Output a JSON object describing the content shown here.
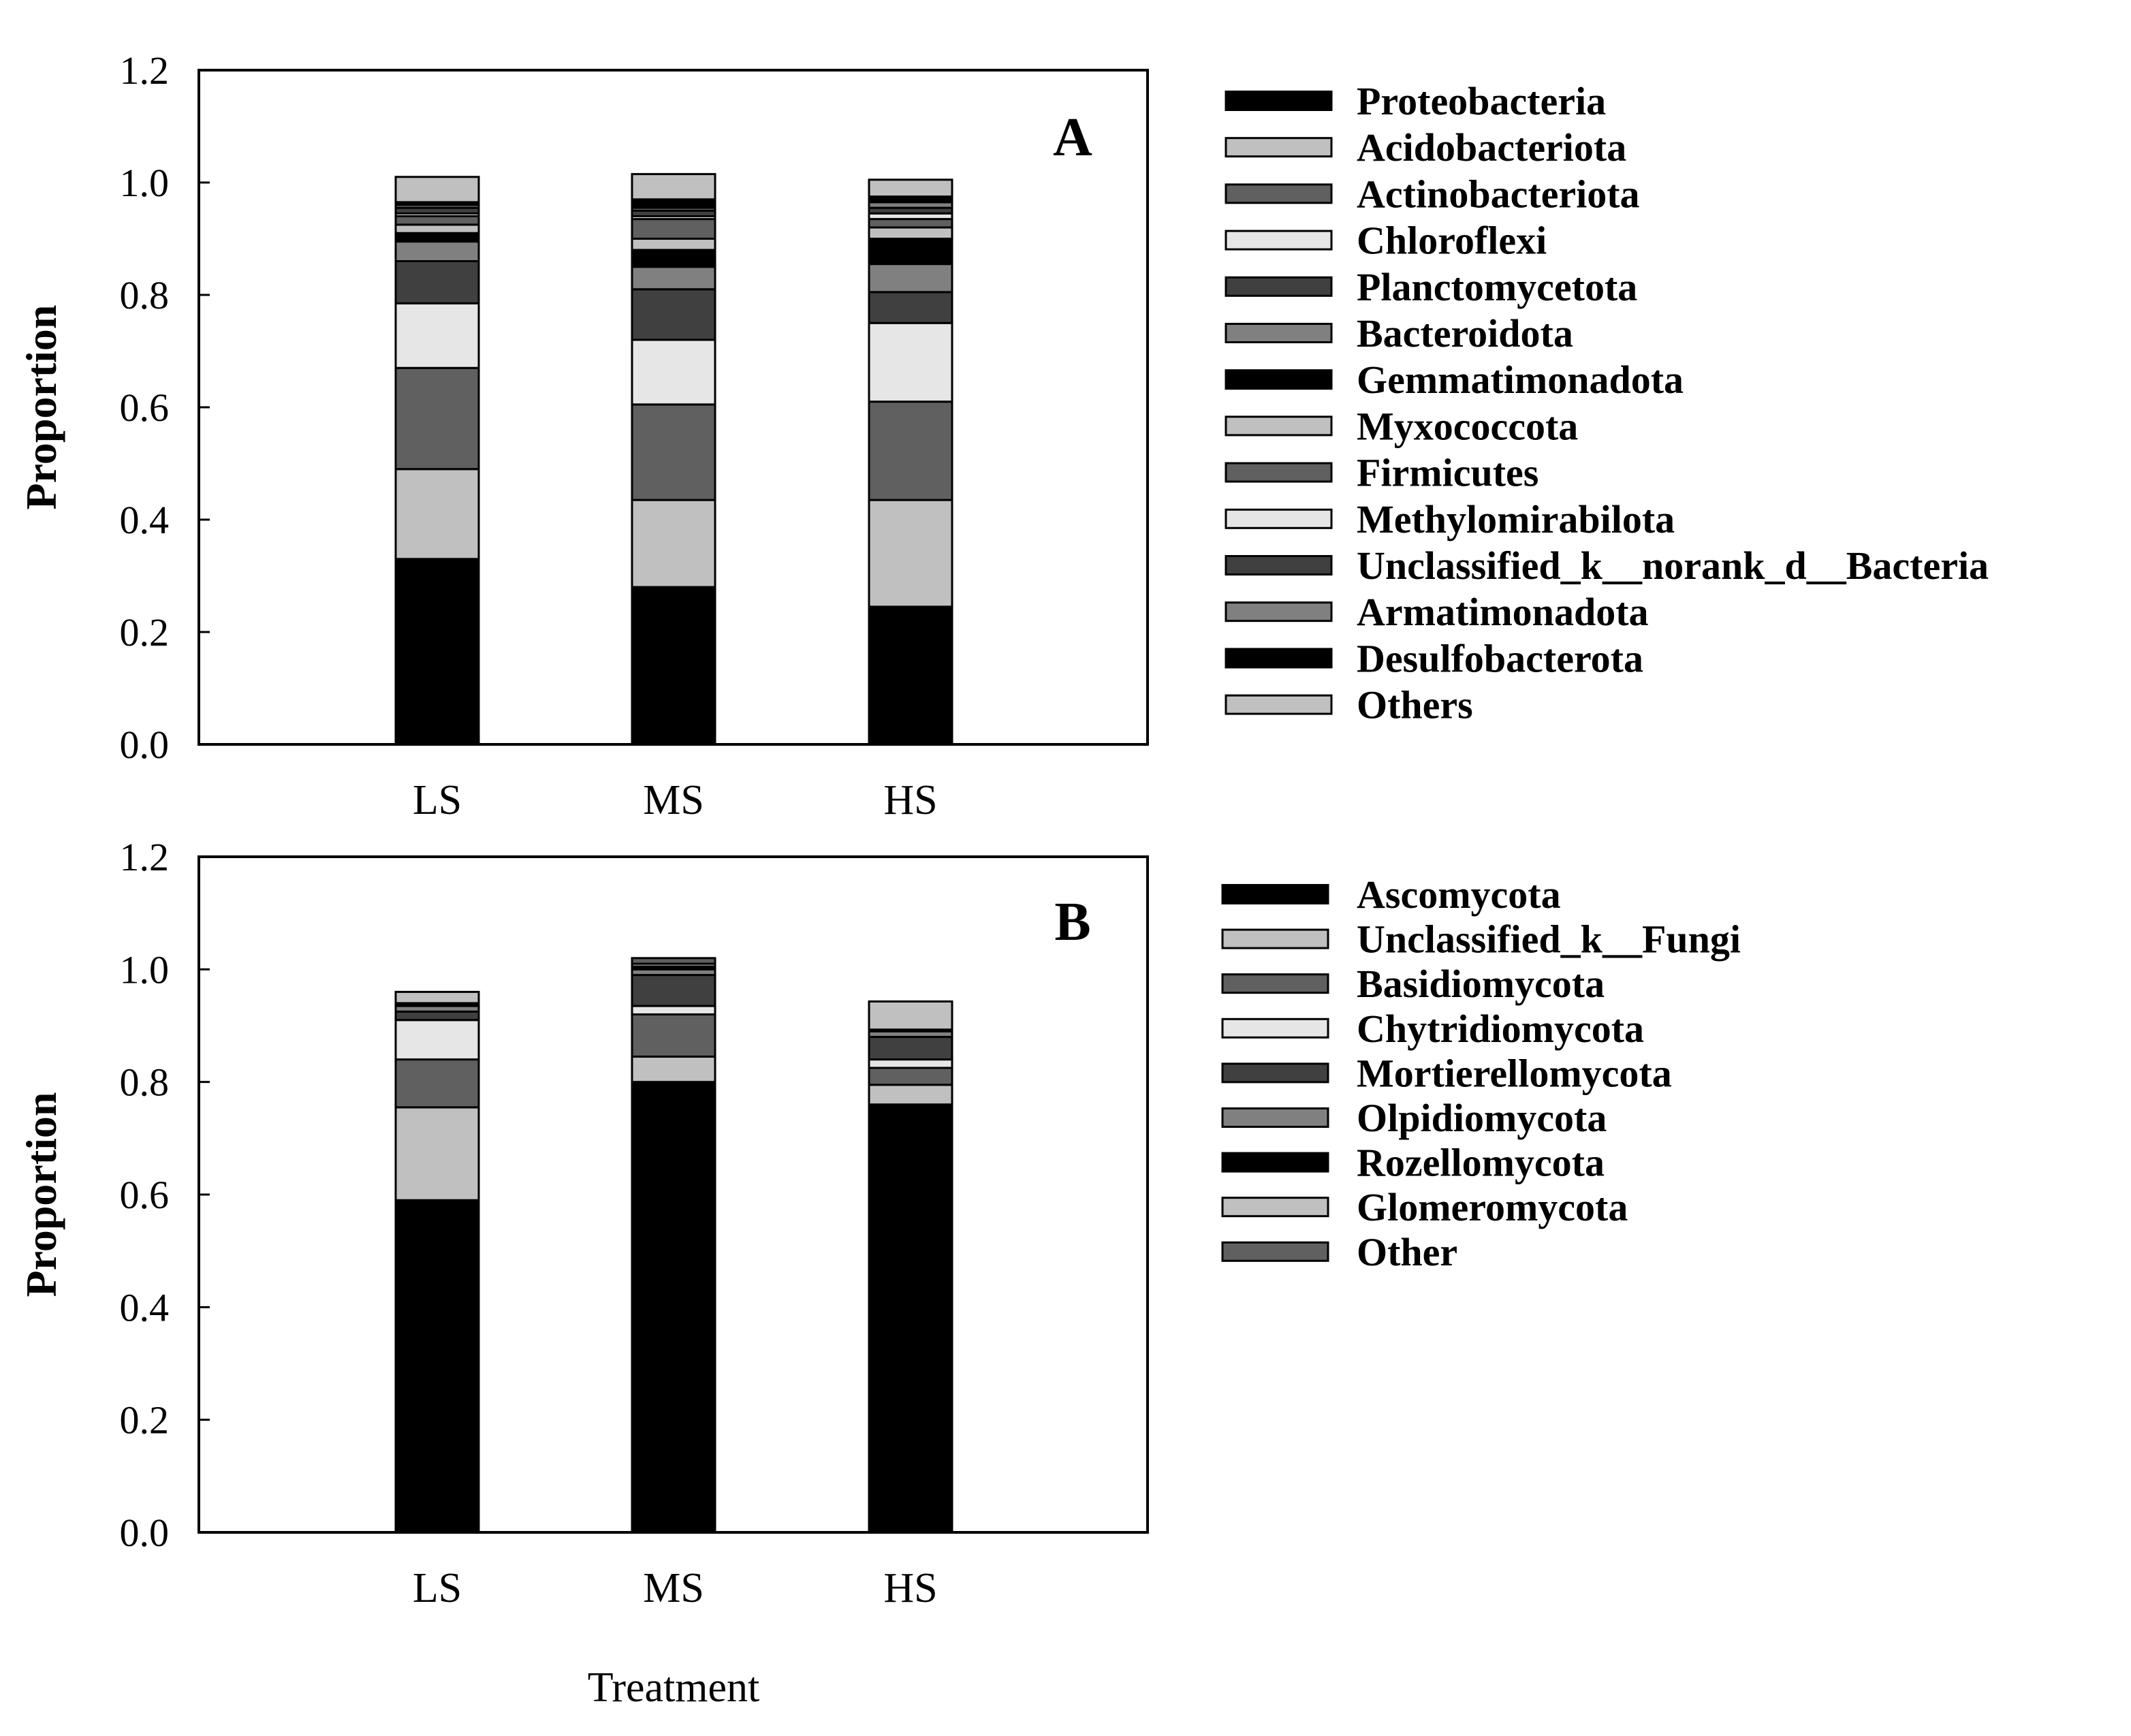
{
  "chart_data": [
    {
      "type": "bar",
      "stacked": true,
      "panel_label": "A",
      "categories": [
        "LS",
        "MS",
        "HS"
      ],
      "ylabel": "Proportion",
      "xlabel": "",
      "ylim": [
        0,
        1.2
      ],
      "yticks": [
        "0.0",
        "0.2",
        "0.4",
        "0.6",
        "0.8",
        "1.0",
        "1.2"
      ],
      "legend_position": "right",
      "series": [
        {
          "name": "Proteobacteria",
          "color": "#000000",
          "values": [
            0.33,
            0.28,
            0.245
          ]
        },
        {
          "name": "Acidobacteriota",
          "color": "#c0c0c0",
          "values": [
            0.16,
            0.155,
            0.19
          ]
        },
        {
          "name": "Actinobacteriota",
          "color": "#606060",
          "values": [
            0.18,
            0.17,
            0.175
          ]
        },
        {
          "name": "Chloroflexi",
          "color": "#e6e6e6",
          "values": [
            0.115,
            0.115,
            0.14
          ]
        },
        {
          "name": "Planctomycetota",
          "color": "#404040",
          "values": [
            0.075,
            0.09,
            0.055
          ]
        },
        {
          "name": "Bacteroidota",
          "color": "#808080",
          "values": [
            0.035,
            0.04,
            0.05
          ]
        },
        {
          "name": "Gemmatimonadota",
          "color": "#000000",
          "values": [
            0.015,
            0.03,
            0.045
          ]
        },
        {
          "name": "Myxococcota",
          "color": "#c0c0c0",
          "values": [
            0.015,
            0.02,
            0.02
          ]
        },
        {
          "name": "Firmicutes",
          "color": "#606060",
          "values": [
            0.015,
            0.035,
            0.015
          ]
        },
        {
          "name": "Methylomirabilota",
          "color": "#e6e6e6",
          "values": [
            0.005,
            0.005,
            0.01
          ]
        },
        {
          "name": "Unclassified_k__norank_d__Bacteria",
          "color": "#404040",
          "values": [
            0.01,
            0.01,
            0.01
          ]
        },
        {
          "name": "Armatimonadota",
          "color": "#808080",
          "values": [
            0.005,
            0.005,
            0.01
          ]
        },
        {
          "name": "Desulfobacterota",
          "color": "#000000",
          "values": [
            0.005,
            0.015,
            0.01
          ]
        },
        {
          "name": "Others",
          "color": "#c0c0c0",
          "values": [
            0.045,
            0.045,
            0.03
          ]
        }
      ]
    },
    {
      "type": "bar",
      "stacked": true,
      "panel_label": "B",
      "categories": [
        "LS",
        "MS",
        "HS"
      ],
      "ylabel": "Proportion",
      "xlabel": "Treatment",
      "ylim": [
        0,
        1.2
      ],
      "yticks": [
        "0.0",
        "0.2",
        "0.4",
        "0.6",
        "0.8",
        "1.0",
        "1.2"
      ],
      "legend_position": "right",
      "series": [
        {
          "name": "Ascomycota",
          "color": "#000000",
          "values": [
            0.59,
            0.8,
            0.76
          ]
        },
        {
          "name": "Unclassified_k__Fungi",
          "color": "#c0c0c0",
          "values": [
            0.165,
            0.045,
            0.035
          ]
        },
        {
          "name": "Basidiomycota",
          "color": "#606060",
          "values": [
            0.085,
            0.075,
            0.03
          ]
        },
        {
          "name": "Chytridiomycota",
          "color": "#e6e6e6",
          "values": [
            0.07,
            0.015,
            0.015
          ]
        },
        {
          "name": "Mortierellomycota",
          "color": "#404040",
          "values": [
            0.015,
            0.055,
            0.04
          ]
        },
        {
          "name": "Olpidiomycota",
          "color": "#808080",
          "values": [
            0.01,
            0.01,
            0.01
          ]
        },
        {
          "name": "Rozellomycota",
          "color": "#000000",
          "values": [
            0.005,
            0.005,
            0.003
          ]
        },
        {
          "name": "Glomeromycota",
          "color": "#c0c0c0",
          "values": [
            0.02,
            0.005,
            0.05
          ]
        },
        {
          "name": "Other",
          "color": "#606060",
          "values": [
            0.0,
            0.01,
            0.0
          ]
        }
      ]
    }
  ]
}
